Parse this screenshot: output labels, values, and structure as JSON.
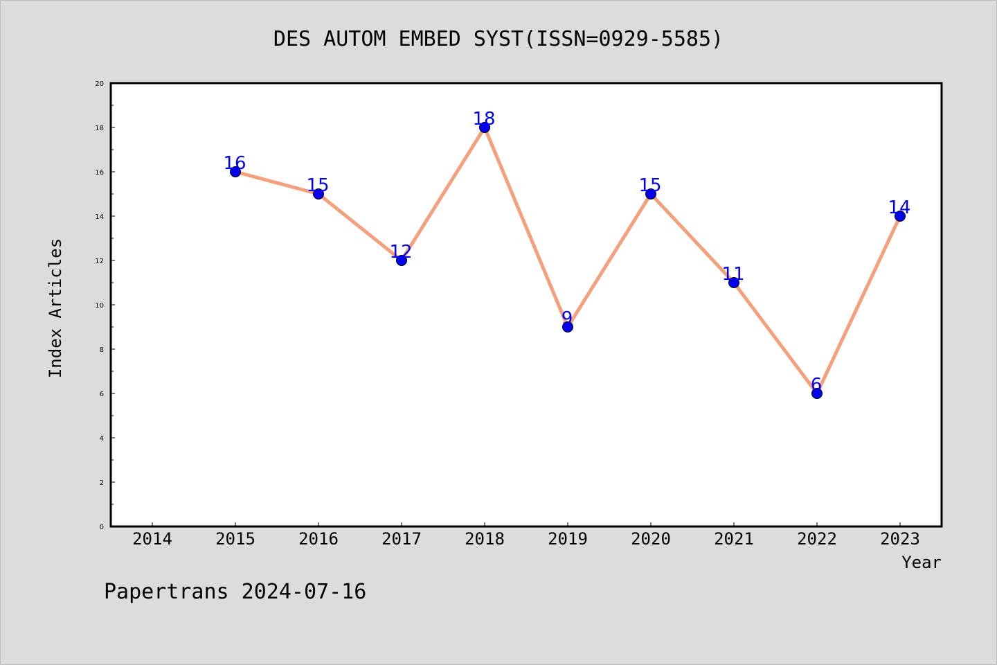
{
  "chart_data": {
    "type": "line",
    "title": "DES AUTOM EMBED SYST(ISSN=0929-5585)",
    "xlabel": "Year",
    "ylabel": "Index Articles",
    "x_ticks": [
      "2014",
      "2015",
      "2016",
      "2017",
      "2018",
      "2019",
      "2020",
      "2021",
      "2022",
      "2023"
    ],
    "y_ticks": [
      "0",
      "2",
      "4",
      "6",
      "8",
      "10",
      "12",
      "14",
      "16",
      "18",
      "20"
    ],
    "xlim": [
      2013.5,
      2023.5
    ],
    "ylim": [
      0,
      20
    ],
    "series": [
      {
        "x": [
          "2015",
          "2016",
          "2017",
          "2018",
          "2019",
          "2020",
          "2021",
          "2022",
          "2023"
        ],
        "values": [
          16,
          15,
          12,
          18,
          9,
          15,
          11,
          6,
          14
        ]
      }
    ],
    "data_labels": [
      "16",
      "15",
      "12",
      "18",
      "9",
      "15",
      "11",
      "6",
      "14"
    ],
    "line_color": "#f4a07c",
    "marker_color": "#0000ee",
    "label_color": "#0000ee",
    "background_color": "#dcdcdc",
    "plot_background": "#ffffff",
    "grid": false,
    "legend": "none"
  },
  "footer": "Papertrans 2024-07-16"
}
